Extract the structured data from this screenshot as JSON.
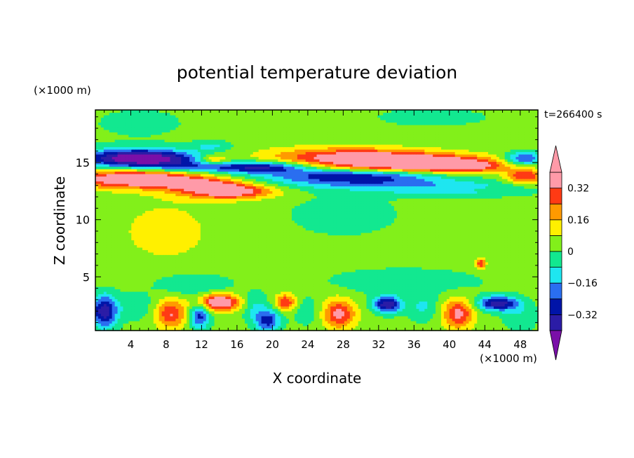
{
  "chart_data": {
    "type": "heatmap",
    "title": "potential temperature deviation",
    "xlabel": "X coordinate",
    "ylabel": "Z coordinate",
    "x_unit_label": "(×1000 m)",
    "y_unit_label": "(×1000 m)",
    "time_label": "t=266400 s",
    "xlim": [
      0,
      50
    ],
    "ylim": [
      0.3,
      19.6
    ],
    "x_ticks": [
      4,
      8,
      12,
      16,
      20,
      24,
      28,
      32,
      36,
      40,
      44,
      48
    ],
    "y_ticks": [
      5,
      10,
      15
    ],
    "colorbar": {
      "levels": [
        -0.4,
        -0.32,
        -0.24,
        -0.16,
        -0.08,
        0,
        0.08,
        0.16,
        0.24,
        0.32,
        0.4
      ],
      "colors": [
        "#7a0fa8",
        "#2b1ca6",
        "#0014a8",
        "#2a6ef0",
        "#1ee6f0",
        "#12e890",
        "#82f01a",
        "#fff000",
        "#ff9a00",
        "#ff3a14",
        "#ff9aa8"
      ],
      "tick_labels": [
        {
          "value": 0.32,
          "label": "0.32"
        },
        {
          "value": 0.16,
          "label": "0.16"
        },
        {
          "value": 0,
          "label": "0"
        },
        {
          "value": -0.16,
          "label": "−0.16"
        },
        {
          "value": -0.32,
          "label": "−0.32"
        }
      ],
      "extend": "both"
    },
    "background_value": 0.03,
    "features": [
      {
        "x": 5,
        "z": 15.4,
        "sx": 4.5,
        "sz": 0.55,
        "amp": -0.55
      },
      {
        "x": 11,
        "z": 14.6,
        "sx": 4,
        "sz": 0.4,
        "amp": -0.2
      },
      {
        "x": 5,
        "z": 13.6,
        "sx": 5.5,
        "sz": 0.55,
        "amp": 0.45
      },
      {
        "x": 15,
        "z": 12.5,
        "sx": 3.5,
        "sz": 0.45,
        "amp": 0.4
      },
      {
        "x": 12,
        "z": 13.1,
        "sx": 3,
        "sz": 0.35,
        "amp": 0.22
      },
      {
        "x": 28,
        "z": 15.5,
        "sx": 6,
        "sz": 0.6,
        "amp": 0.3
      },
      {
        "x": 36,
        "z": 15.0,
        "sx": 5.5,
        "sz": 0.55,
        "amp": 0.45
      },
      {
        "x": 42,
        "z": 14.7,
        "sx": 3,
        "sz": 0.4,
        "amp": 0.25
      },
      {
        "x": 29,
        "z": 13.8,
        "sx": 7,
        "sz": 0.45,
        "amp": -0.34
      },
      {
        "x": 19,
        "z": 14.6,
        "sx": 3.5,
        "sz": 0.35,
        "amp": -0.35
      },
      {
        "x": 36,
        "z": 13.0,
        "sx": 9,
        "sz": 0.35,
        "amp": -0.16
      },
      {
        "x": 13.3,
        "z": 15.3,
        "sx": 1.2,
        "sz": 0.3,
        "amp": 0.22
      },
      {
        "x": 48.5,
        "z": 15.4,
        "sx": 1.5,
        "sz": 0.4,
        "amp": -0.3
      },
      {
        "x": 48.5,
        "z": 13.8,
        "sx": 1.5,
        "sz": 0.45,
        "amp": 0.3
      },
      {
        "x": 13.2,
        "z": 16.5,
        "sx": 1.4,
        "sz": 0.3,
        "amp": -0.12
      },
      {
        "x": 40,
        "z": 12.3,
        "sx": 6,
        "sz": 0.25,
        "amp": -0.1
      },
      {
        "x": 8.5,
        "z": 1.8,
        "sx": 1.2,
        "sz": 0.9,
        "amp": 0.3
      },
      {
        "x": 27.5,
        "z": 1.8,
        "sx": 1.3,
        "sz": 0.9,
        "amp": 0.32
      },
      {
        "x": 41,
        "z": 1.8,
        "sx": 1.2,
        "sz": 0.9,
        "amp": 0.32
      },
      {
        "x": 14,
        "z": 2.8,
        "sx": 1.6,
        "sz": 0.5,
        "amp": 0.45
      },
      {
        "x": 21.5,
        "z": 2.8,
        "sx": 0.8,
        "sz": 0.5,
        "amp": 0.3
      },
      {
        "x": 1,
        "z": 2.0,
        "sx": 1,
        "sz": 1.0,
        "amp": -0.4
      },
      {
        "x": 11.8,
        "z": 1.6,
        "sx": 0.8,
        "sz": 0.8,
        "amp": -0.3
      },
      {
        "x": 19.5,
        "z": 1.2,
        "sx": 1,
        "sz": 0.7,
        "amp": -0.3
      },
      {
        "x": 33,
        "z": 2.6,
        "sx": 1.1,
        "sz": 0.5,
        "amp": -0.42
      },
      {
        "x": 45.5,
        "z": 2.7,
        "sx": 1.6,
        "sz": 0.45,
        "amp": -0.4
      },
      {
        "x": 4.5,
        "z": 2.4,
        "sx": 2,
        "sz": 0.9,
        "amp": -0.08
      },
      {
        "x": 18,
        "z": 2.4,
        "sx": 1,
        "sz": 0.9,
        "amp": -0.12
      },
      {
        "x": 37,
        "z": 2.4,
        "sx": 1.2,
        "sz": 0.9,
        "amp": -0.12
      },
      {
        "x": 24,
        "z": 2.0,
        "sx": 1.3,
        "sz": 0.9,
        "amp": -0.08
      },
      {
        "x": 48,
        "z": 1.5,
        "sx": 1.3,
        "sz": 0.9,
        "amp": -0.1
      },
      {
        "x": 11,
        "z": 4.4,
        "sx": 3,
        "sz": 0.7,
        "amp": -0.12
      },
      {
        "x": 35,
        "z": 4.6,
        "sx": 6,
        "sz": 0.8,
        "amp": -0.09
      },
      {
        "x": 8,
        "z": 9.0,
        "sx": 5,
        "sz": 2.5,
        "amp": 0.07
      },
      {
        "x": 43.5,
        "z": 6.2,
        "sx": 0.4,
        "sz": 0.3,
        "amp": 0.3
      },
      {
        "x": 28,
        "z": 10.5,
        "sx": 6,
        "sz": 1.8,
        "amp": -0.05
      },
      {
        "x": 5,
        "z": 18.5,
        "sx": 6,
        "sz": 1.5,
        "amp": -0.04
      },
      {
        "x": 38,
        "z": 19.0,
        "sx": 8,
        "sz": 1.0,
        "amp": -0.04
      }
    ]
  }
}
